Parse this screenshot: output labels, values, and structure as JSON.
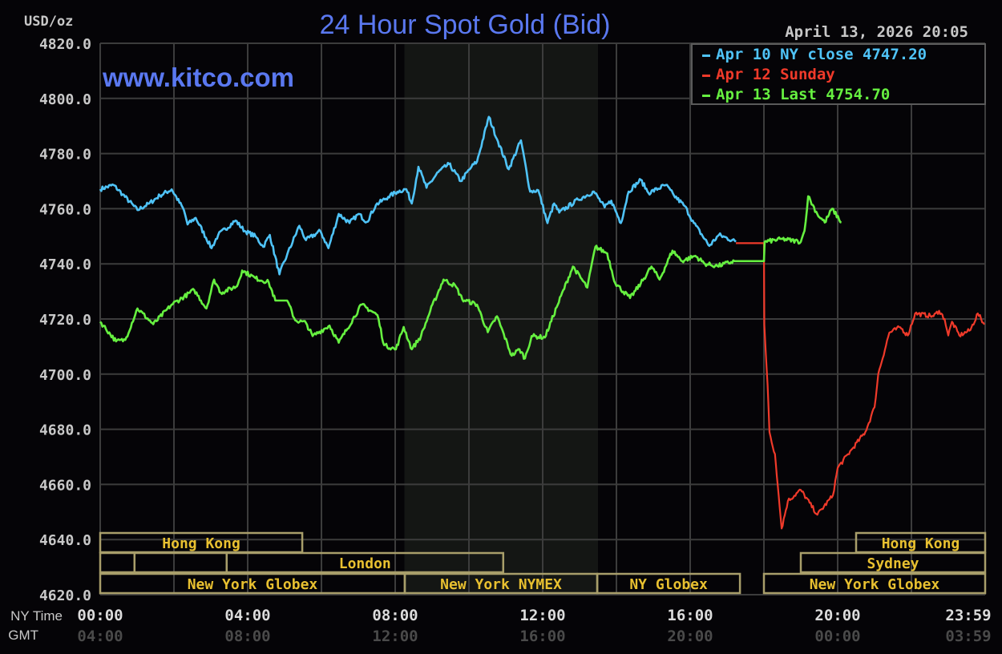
{
  "chart_data": {
    "type": "line",
    "title": "24 Hour Spot Gold (Bid)",
    "watermark": "www.kitco.com",
    "timestamp": "April 13, 2026 20:05",
    "ylabel": "USD/oz",
    "ylim": [
      4620,
      4820
    ],
    "yticks": [
      "4820.0",
      "4800.0",
      "4780.0",
      "4760.0",
      "4740.0",
      "4720.0",
      "4700.0",
      "4680.0",
      "4660.0",
      "4640.0",
      "4620.0"
    ],
    "xlim_hours": [
      0,
      24
    ],
    "x_axis_labels": {
      "ny": "NY Time",
      "gmt": "GMT"
    },
    "xticks": [
      {
        "h": 0,
        "ny": "00:00",
        "gmt": "04:00"
      },
      {
        "h": 4,
        "ny": "04:00",
        "gmt": "08:00"
      },
      {
        "h": 8,
        "ny": "08:00",
        "gmt": "12:00"
      },
      {
        "h": 12,
        "ny": "12:00",
        "gmt": "16:00"
      },
      {
        "h": 16,
        "ny": "16:00",
        "gmt": "20:00"
      },
      {
        "h": 20,
        "ny": "20:00",
        "gmt": "00:00"
      },
      {
        "h": 23.98,
        "ny": "23:59",
        "gmt": "03:59"
      }
    ],
    "grid": true,
    "shaded_session_hours": [
      8.25,
      13.5
    ],
    "legend_position": "top-right",
    "series": [
      {
        "name": "Apr 10 NY close 4747.20",
        "color": "#4fc3f7",
        "points": [
          [
            0,
            4767.1
          ],
          [
            0.36,
            4768.6
          ],
          [
            0.61,
            4765.2
          ],
          [
            1.01,
            4759.5
          ],
          [
            1.33,
            4761.9
          ],
          [
            1.62,
            4764.8
          ],
          [
            1.94,
            4767
          ],
          [
            2.27,
            4759.5
          ],
          [
            2.37,
            4754.3
          ],
          [
            2.59,
            4756.7
          ],
          [
            3.02,
            4745.7
          ],
          [
            3.2,
            4750.5
          ],
          [
            3.67,
            4755.7
          ],
          [
            3.92,
            4751.9
          ],
          [
            4.21,
            4750
          ],
          [
            4.42,
            4746.2
          ],
          [
            4.6,
            4750.5
          ],
          [
            4.86,
            4736.2
          ],
          [
            5.07,
            4743.3
          ],
          [
            5.4,
            4753.8
          ],
          [
            5.58,
            4748.6
          ],
          [
            5.97,
            4751.9
          ],
          [
            6.19,
            4745.7
          ],
          [
            6.47,
            4758.1
          ],
          [
            6.76,
            4754.8
          ],
          [
            7.01,
            4758.1
          ],
          [
            7.23,
            4755.2
          ],
          [
            7.48,
            4761.4
          ],
          [
            7.81,
            4764.3
          ],
          [
            8.06,
            4766.2
          ],
          [
            8.3,
            4767.1
          ],
          [
            8.45,
            4761.9
          ],
          [
            8.63,
            4775.2
          ],
          [
            8.85,
            4767.6
          ],
          [
            9.17,
            4773.3
          ],
          [
            9.46,
            4776.2
          ],
          [
            9.78,
            4770
          ],
          [
            10.07,
            4775.2
          ],
          [
            10.22,
            4777.1
          ],
          [
            10.54,
            4793.3
          ],
          [
            10.79,
            4784.3
          ],
          [
            11.08,
            4774.3
          ],
          [
            11.41,
            4784.8
          ],
          [
            11.66,
            4766.2
          ],
          [
            11.88,
            4766.7
          ],
          [
            12.13,
            4754.8
          ],
          [
            12.31,
            4761.9
          ],
          [
            12.45,
            4758.6
          ],
          [
            12.96,
            4763.3
          ],
          [
            13.39,
            4766.2
          ],
          [
            13.68,
            4760.5
          ],
          [
            13.86,
            4762.9
          ],
          [
            14.12,
            4754.8
          ],
          [
            14.33,
            4766.2
          ],
          [
            14.66,
            4770.5
          ],
          [
            14.87,
            4765.7
          ],
          [
            15.34,
            4768.6
          ],
          [
            15.56,
            4764.8
          ],
          [
            15.85,
            4761
          ],
          [
            16.1,
            4754.8
          ],
          [
            16.52,
            4746.5
          ],
          [
            16.78,
            4750.5
          ],
          [
            17.24,
            4748
          ]
        ]
      },
      {
        "name": "Apr 12 Sunday",
        "color": "#f03a2a",
        "points": [
          [
            17.24,
            4747.5
          ],
          [
            18.0,
            4747.5
          ],
          [
            18.01,
            4718
          ],
          [
            18.1,
            4696
          ],
          [
            18.15,
            4679
          ],
          [
            18.3,
            4671
          ],
          [
            18.35,
            4663
          ],
          [
            18.4,
            4656
          ],
          [
            18.48,
            4644
          ],
          [
            18.65,
            4654
          ],
          [
            19.0,
            4658
          ],
          [
            19.45,
            4649
          ],
          [
            19.87,
            4656
          ],
          [
            20.0,
            4666
          ],
          [
            20.4,
            4673
          ],
          [
            20.75,
            4679
          ],
          [
            21.0,
            4688
          ],
          [
            21.1,
            4700
          ],
          [
            21.4,
            4715
          ],
          [
            21.7,
            4717
          ],
          [
            21.9,
            4714
          ],
          [
            22.1,
            4722
          ],
          [
            22.6,
            4721
          ],
          [
            22.75,
            4723
          ],
          [
            22.9,
            4720
          ],
          [
            23.0,
            4714
          ],
          [
            23.1,
            4719
          ],
          [
            23.3,
            4714
          ],
          [
            23.6,
            4716
          ],
          [
            23.8,
            4722
          ],
          [
            23.98,
            4718
          ]
        ]
      },
      {
        "name": "Apr 13 Last 4754.70",
        "color": "#66f040",
        "points": [
          [
            0,
            4719
          ],
          [
            0.43,
            4711.9
          ],
          [
            0.68,
            4712.4
          ],
          [
            1.01,
            4723.8
          ],
          [
            1.44,
            4718.1
          ],
          [
            1.94,
            4725.2
          ],
          [
            2.55,
            4730.5
          ],
          [
            2.88,
            4723.8
          ],
          [
            3.09,
            4734.3
          ],
          [
            3.27,
            4729.5
          ],
          [
            3.71,
            4731.9
          ],
          [
            3.85,
            4737.6
          ],
          [
            4.21,
            4734.8
          ],
          [
            4.57,
            4733.3
          ],
          [
            4.75,
            4726.7
          ],
          [
            5.07,
            4726.7
          ],
          [
            5.29,
            4719.5
          ],
          [
            5.58,
            4718.6
          ],
          [
            5.76,
            4713.8
          ],
          [
            6.22,
            4717.6
          ],
          [
            6.47,
            4711.4
          ],
          [
            7.09,
            4725.2
          ],
          [
            7.52,
            4721.4
          ],
          [
            7.7,
            4710.5
          ],
          [
            8.02,
            4709
          ],
          [
            8.23,
            4717.1
          ],
          [
            8.45,
            4709
          ],
          [
            8.7,
            4713.8
          ],
          [
            8.95,
            4722.9
          ],
          [
            9.31,
            4734.3
          ],
          [
            9.64,
            4731.9
          ],
          [
            9.82,
            4727.1
          ],
          [
            10.22,
            4725.2
          ],
          [
            10.51,
            4715.2
          ],
          [
            10.76,
            4721
          ],
          [
            11.16,
            4706.7
          ],
          [
            11.37,
            4709
          ],
          [
            11.52,
            4705.7
          ],
          [
            11.7,
            4713.8
          ],
          [
            12.06,
            4713.3
          ],
          [
            12.38,
            4724.3
          ],
          [
            12.82,
            4739
          ],
          [
            13.21,
            4731.4
          ],
          [
            13.43,
            4746.2
          ],
          [
            13.75,
            4743.8
          ],
          [
            13.97,
            4732.9
          ],
          [
            14.37,
            4727.6
          ],
          [
            14.66,
            4732.9
          ],
          [
            14.95,
            4739
          ],
          [
            15.17,
            4734.3
          ],
          [
            15.52,
            4744.8
          ],
          [
            15.78,
            4741
          ],
          [
            16.14,
            4742.9
          ],
          [
            16.4,
            4740
          ],
          [
            16.74,
            4739.2
          ],
          [
            17.2,
            4741
          ],
          [
            18.0,
            4741
          ],
          [
            18.02,
            4748
          ],
          [
            18.5,
            4749
          ],
          [
            19.0,
            4748
          ],
          [
            19.1,
            4752
          ],
          [
            19.2,
            4764.5
          ],
          [
            19.45,
            4758
          ],
          [
            19.65,
            4755
          ],
          [
            19.85,
            4760
          ],
          [
            20.1,
            4755
          ]
        ]
      }
    ],
    "sessions": [
      {
        "label": "Hong Kong",
        "row": 0,
        "start": 0,
        "end": 5.48,
        "show_label": true
      },
      {
        "label": "",
        "row": 1,
        "start": 0,
        "end": 0.93,
        "show_label": false
      },
      {
        "label": "",
        "row": 1,
        "start": 0.93,
        "end": 3.43,
        "show_label": false
      },
      {
        "label": "London",
        "row": 1,
        "start": 3.43,
        "end": 10.93,
        "show_label": true
      },
      {
        "label": "New York Globex",
        "row": 2,
        "start": 0,
        "end": 8.26,
        "show_label": true
      },
      {
        "label": "New York NYMEX",
        "row": 2,
        "start": 8.26,
        "end": 13.48,
        "show_label": true
      },
      {
        "label": "NY Globex",
        "row": 2,
        "start": 13.48,
        "end": 17.35,
        "show_label": true
      },
      {
        "label": "Hong Kong",
        "row": 0,
        "start": 20.5,
        "end": 24,
        "show_label": true
      },
      {
        "label": "Sydney",
        "row": 1,
        "start": 19.0,
        "end": 24,
        "show_label": true
      },
      {
        "label": "New York Globex",
        "row": 2,
        "start": 18.0,
        "end": 24,
        "show_label": true
      }
    ]
  }
}
